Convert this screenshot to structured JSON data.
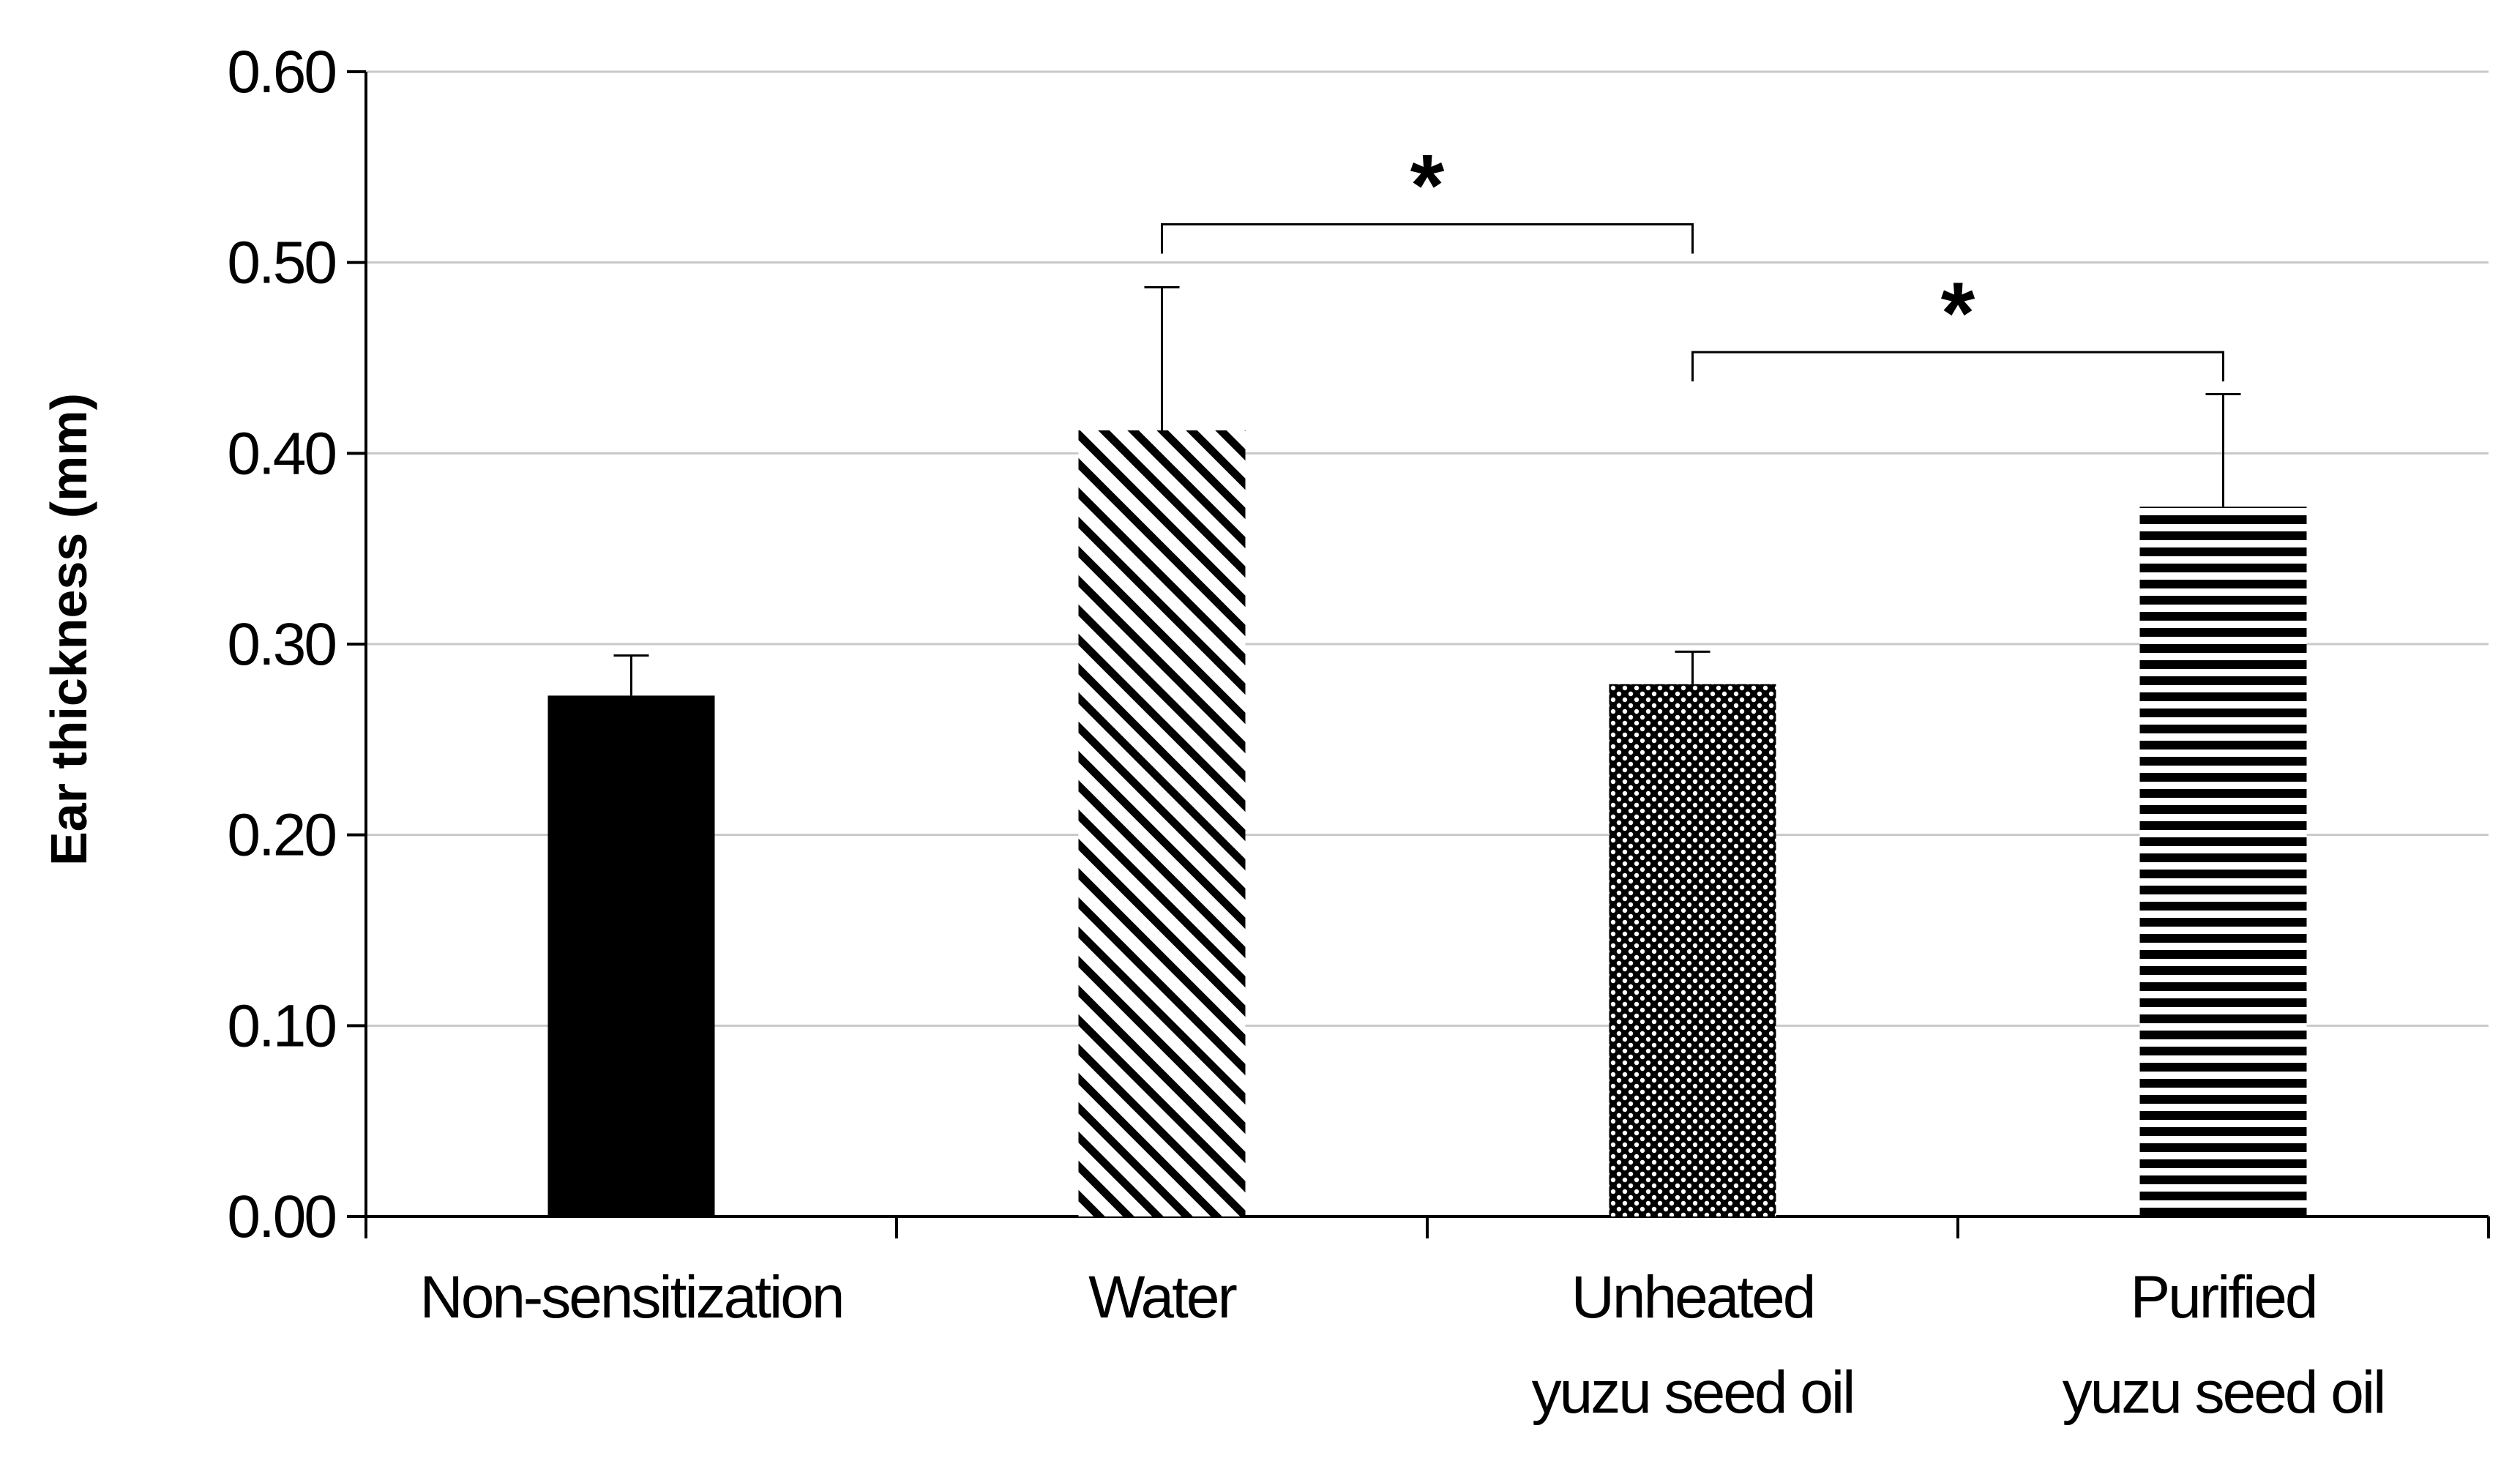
{
  "chart_data": {
    "type": "bar",
    "title": "",
    "xlabel": "",
    "ylabel": "Ear thickness (mm)",
    "ylim": [
      0,
      0.6
    ],
    "yticks": [
      "0.00",
      "0.10",
      "0.20",
      "0.30",
      "0.40",
      "0.50",
      "0.60"
    ],
    "grid": true,
    "categories": [
      [
        "Non-sensitization"
      ],
      [
        "Water"
      ],
      [
        "Unheated",
        "yuzu seed oil"
      ],
      [
        "Purified",
        "yuzu seed oil"
      ]
    ],
    "values": [
      0.273,
      0.412,
      0.279,
      0.372
    ],
    "errors": [
      0.021,
      0.075,
      0.017,
      0.059
    ],
    "patterns": [
      "solid",
      "diagonal-stripes",
      "dots",
      "horizontal-stripes"
    ],
    "significance": [
      {
        "from": 1,
        "to": 2,
        "label": "*",
        "y": 0.52
      },
      {
        "from": 2,
        "to": 3,
        "label": "*",
        "y": 0.453
      }
    ]
  },
  "colors": {
    "bar": "#000000",
    "grid": "#c8c8c8",
    "axis": "#000000"
  }
}
